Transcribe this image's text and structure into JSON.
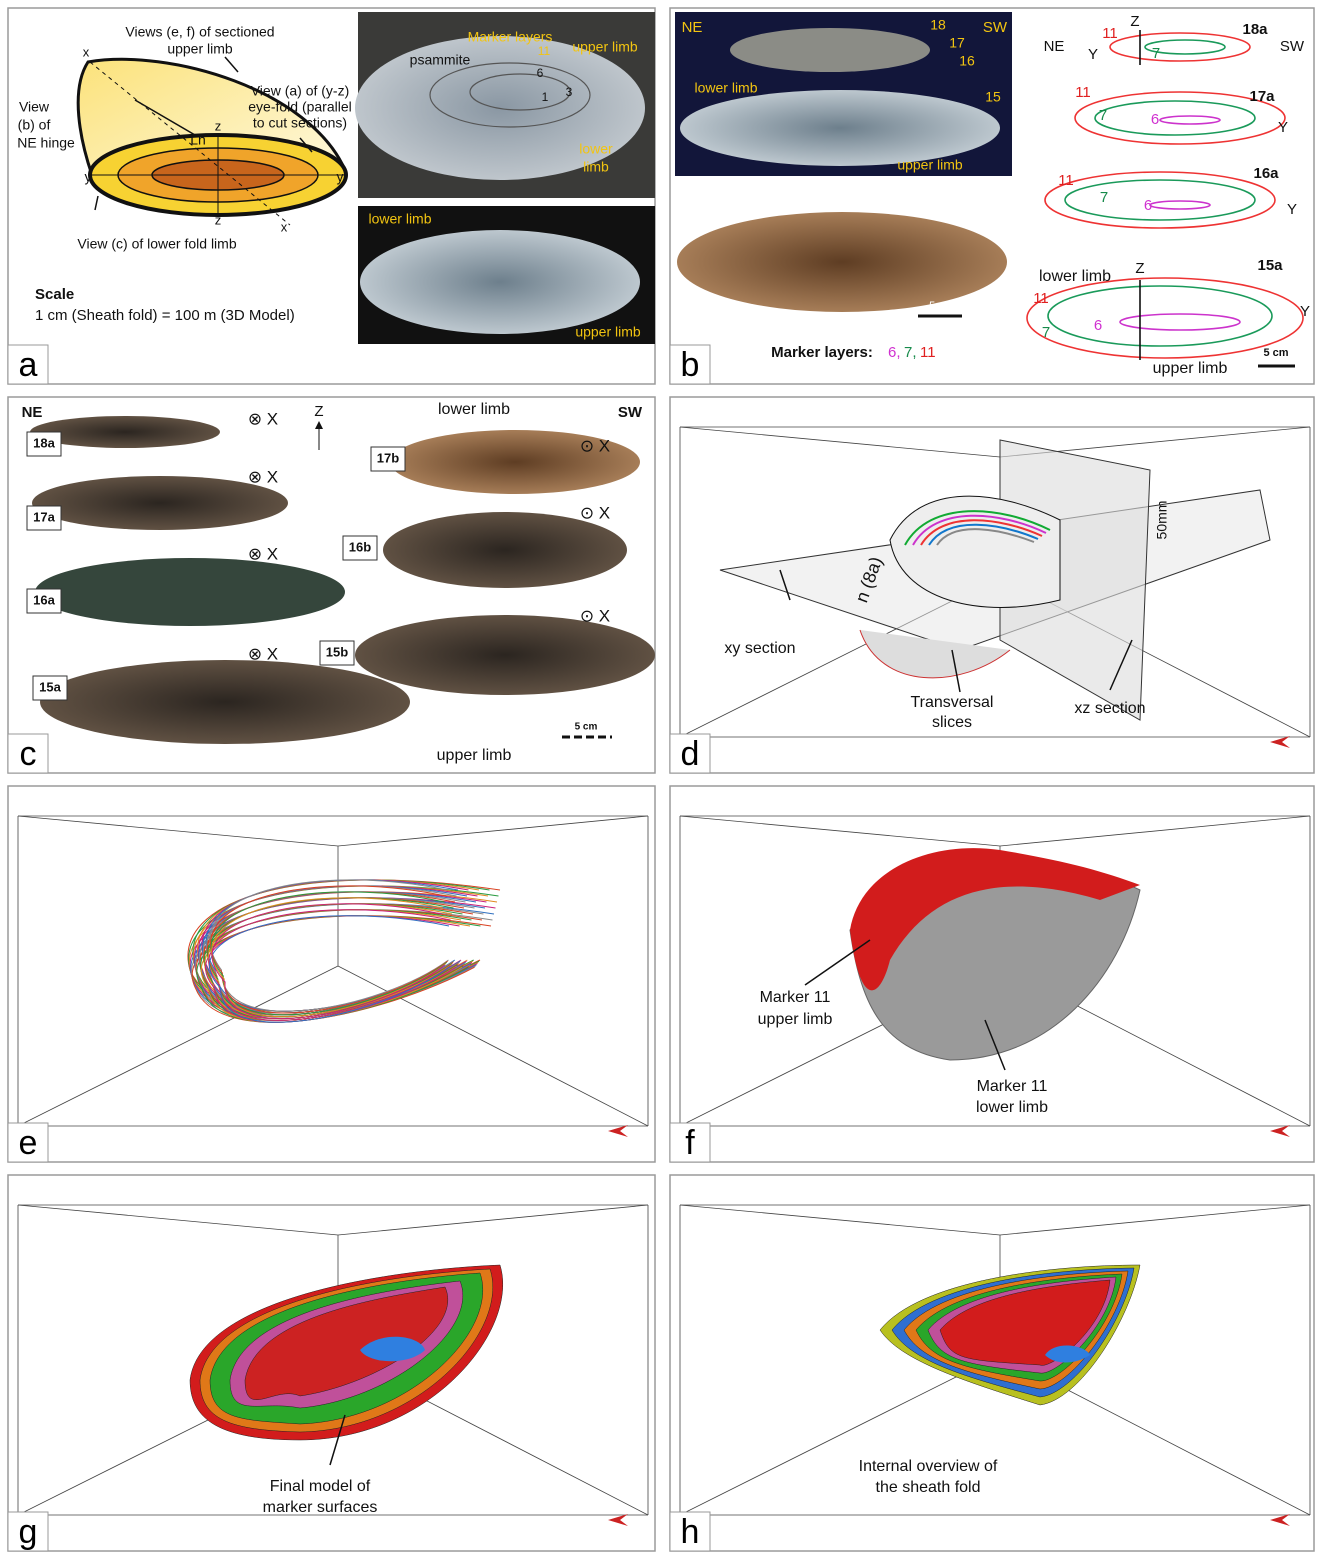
{
  "panels": [
    {
      "letter": "a",
      "labels": [
        "Views (e, f) of sectioned",
        "upper limb",
        "x",
        "View (a) of (y-z)",
        "eye-fold (parallel",
        "to cut sections)",
        "View",
        "(b) of",
        "NE hinge",
        "Ln",
        "z",
        "y",
        "y",
        "z",
        "x",
        "View (c) of lower fold limb",
        "Scale",
        "1 cm (Sheath fold) = 100 m (3D Model)",
        "Marker layers",
        "upper limb",
        "psammite",
        "11",
        "6",
        "1",
        "3",
        "lower",
        "limb",
        "lower limb",
        "upper limb"
      ]
    },
    {
      "letter": "b",
      "labels": [
        "NE",
        "SW",
        "18",
        "17",
        "16",
        "15",
        "lower limb",
        "upper limb",
        "5 cm",
        "Marker layers:",
        "6,",
        "7,",
        "11",
        "11",
        "Z",
        "18a",
        "NE",
        "Y",
        "7",
        "SW",
        "11",
        "17a",
        "7",
        "6",
        "Y",
        "11",
        "16a",
        "7",
        "6",
        "Y",
        "lower limb",
        "Z",
        "15a",
        "11",
        "7",
        "6",
        "Y",
        "upper limb",
        "5 cm"
      ]
    },
    {
      "letter": "c",
      "labels": [
        "NE",
        "SW",
        "Z",
        "lower limb",
        "upper limb",
        "5 cm",
        "18a",
        "17a",
        "16a",
        "15a",
        "17b",
        "16b",
        "15b",
        "⊗ X",
        "⊗ X",
        "⊗ X",
        "⊗ X",
        "⊙ X",
        "⊙ X",
        "⊙ X"
      ]
    },
    {
      "letter": "d",
      "labels": [
        "xy section",
        "Transversal",
        "slices",
        "xz section",
        "50mm",
        "n (8a)"
      ]
    },
    {
      "letter": "e",
      "labels": []
    },
    {
      "letter": "f",
      "labels": [
        "Marker 11",
        "upper limb",
        "Marker 11",
        "lower limb"
      ]
    },
    {
      "letter": "g",
      "labels": [
        "Final model of",
        "marker surfaces"
      ]
    },
    {
      "letter": "h",
      "labels": [
        "Internal overview of",
        "the sheath fold"
      ]
    }
  ]
}
